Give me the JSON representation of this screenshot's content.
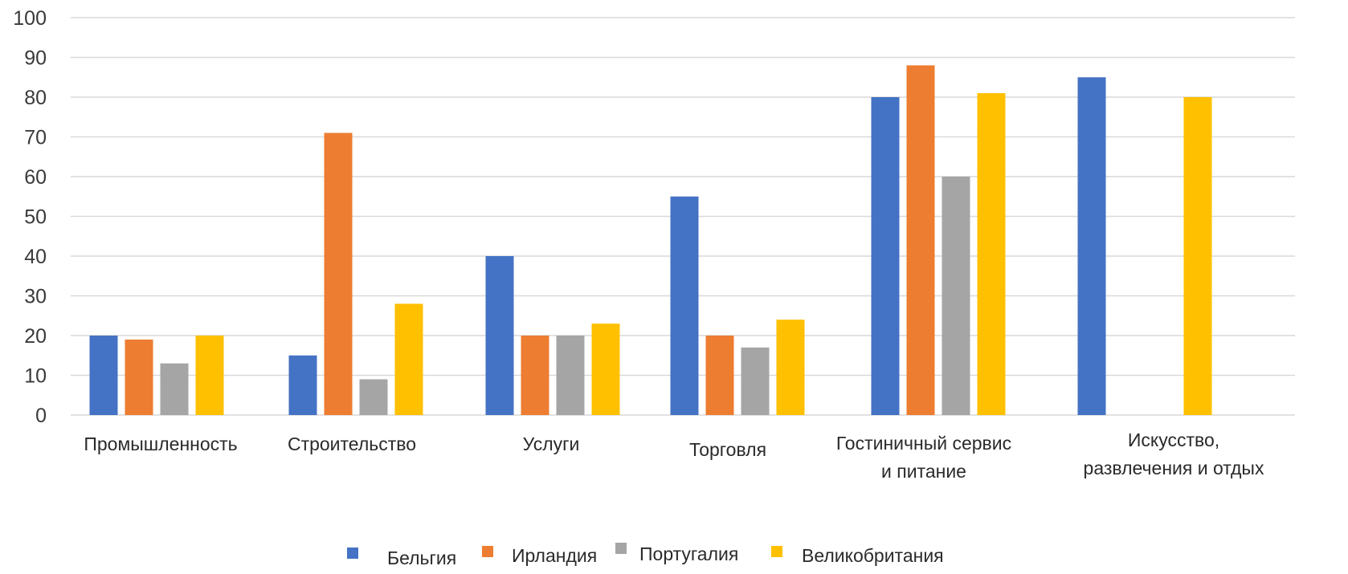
{
  "chart_data": {
    "type": "bar",
    "title": "",
    "xlabel": "",
    "ylabel": "",
    "ylim": [
      0,
      100
    ],
    "yticks": [
      0,
      10,
      20,
      30,
      40,
      50,
      60,
      70,
      80,
      90,
      100
    ],
    "grid": true,
    "legend_position": "bottom",
    "categories": [
      [
        "Промышленность"
      ],
      [
        "Строительство"
      ],
      [
        "Услуги"
      ],
      [
        "Торговля"
      ],
      [
        "Гостиничный сервис",
        "и питание"
      ],
      [
        "Искусство,",
        "развлечения и отдых"
      ]
    ],
    "series": [
      {
        "name": "Бельгия",
        "color": "#4472C4",
        "values": [
          20,
          15,
          40,
          55,
          80,
          85
        ]
      },
      {
        "name": "Ирландия",
        "color": "#ED7D31",
        "values": [
          19,
          71,
          20,
          20,
          88,
          null
        ]
      },
      {
        "name": "Португалия",
        "color": "#A5A5A5",
        "values": [
          13,
          9,
          20,
          17,
          60,
          null
        ]
      },
      {
        "name": "Великобритания",
        "color": "#FFC000",
        "values": [
          20,
          28,
          23,
          24,
          81,
          80
        ]
      }
    ]
  }
}
